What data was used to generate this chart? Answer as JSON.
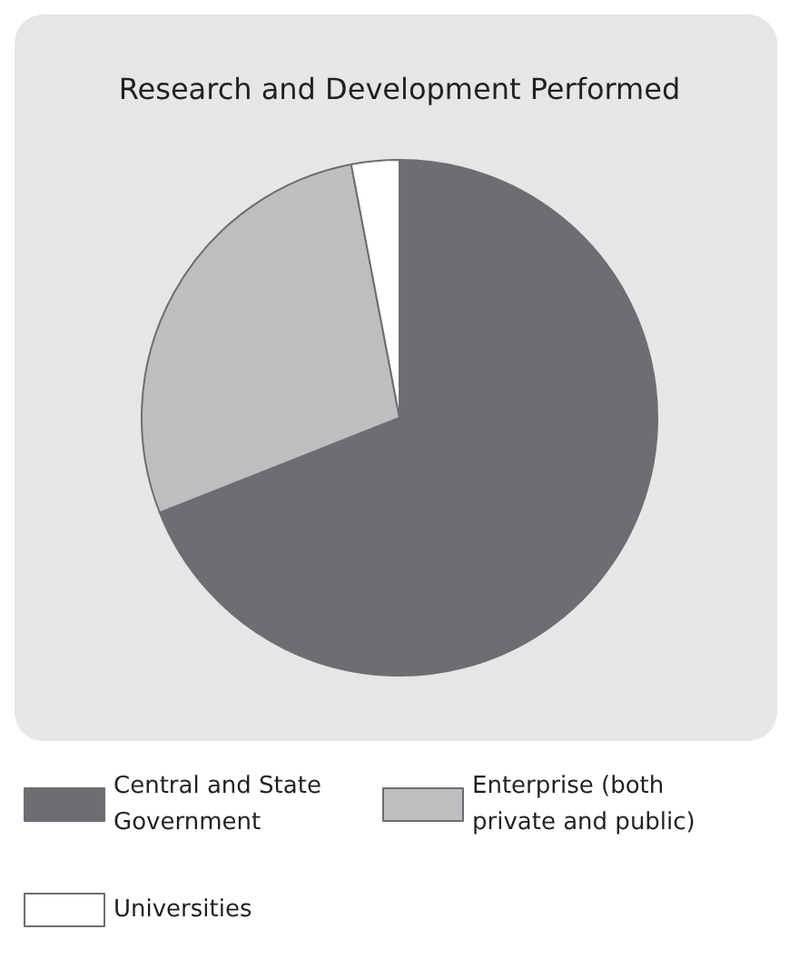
{
  "chart_data": {
    "type": "pie",
    "title": "Research and Development Performed",
    "categories": [
      "Central and State Government",
      "Enterprise (both private and public)",
      "Universities"
    ],
    "values": [
      69,
      28,
      3
    ],
    "colors": [
      "#6d6e71",
      "#bcbec0",
      "#ffffff"
    ],
    "legend": "bottom"
  }
}
